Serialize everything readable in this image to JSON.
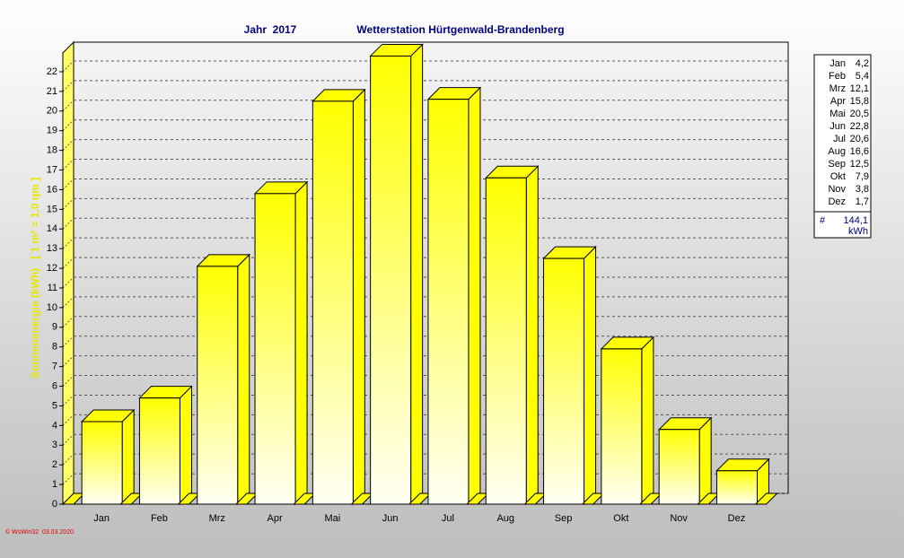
{
  "chart_data": {
    "type": "bar3d",
    "period": "Jahr  2017",
    "title": "Wetterstation Hürtgenwald-Brandenberg",
    "y_label": "Sonnenenergie (kWh)   [ 1 m² = 1.0 qm ]",
    "categories": [
      "Jan",
      "Feb",
      "Mrz",
      "Apr",
      "Mai",
      "Jun",
      "Jul",
      "Aug",
      "Sep",
      "Okt",
      "Nov",
      "Dez"
    ],
    "values": [
      4.2,
      5.4,
      12.1,
      15.8,
      20.5,
      22.8,
      20.6,
      16.6,
      12.5,
      7.9,
      3.8,
      1.7
    ],
    "value_labels": [
      "4,2",
      "5,4",
      "12,1",
      "15,8",
      "20,5",
      "22,8",
      "20,6",
      "16,6",
      "12,5",
      "7,9",
      "3,8",
      "1,7"
    ],
    "color": "#ffff00",
    "total": {
      "value": 144.1,
      "label": "144,1"
    },
    "total_symbol": "#",
    "unit": "kWh",
    "ylim": [
      0,
      23
    ],
    "yticks": [
      0,
      1,
      2,
      3,
      4,
      5,
      6,
      7,
      8,
      9,
      10,
      11,
      12,
      13,
      14,
      15,
      16,
      17,
      18,
      19,
      20,
      21,
      22
    ],
    "grid": true,
    "footer": "© WsWin32  03.03.2020"
  }
}
